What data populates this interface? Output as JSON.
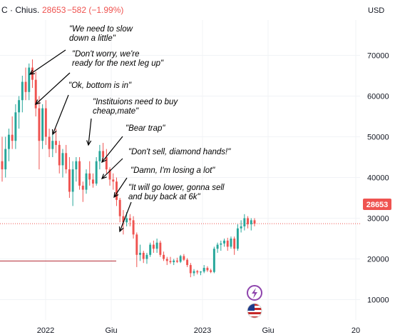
{
  "header": {
    "symbol_text": "C · Chius.",
    "last_price": "28653",
    "change": "−582 (−1.99%)",
    "currency": "USD"
  },
  "price_tag": "28653",
  "colors": {
    "up": "#26a69a",
    "down": "#ef5350",
    "grid": "#f1f3f6",
    "axis_text": "#131722",
    "support_line": "#b22833"
  },
  "icons": [
    "bolt-badge-icon",
    "us-flag-icon"
  ],
  "chart_data": {
    "type": "candlestick",
    "title": "",
    "ylabel": "USD",
    "ylim": [
      5000,
      76000
    ],
    "y_ticks": [
      10000,
      20000,
      30000,
      40000,
      50000,
      60000,
      70000
    ],
    "x_ticks": [
      "2022",
      "Giu",
      "2023",
      "Giu",
      "20"
    ],
    "last_price_line": 28653,
    "support_line": 19500,
    "candles": [
      {
        "o": 44000,
        "h": 50000,
        "l": 39000,
        "c": 42000
      },
      {
        "o": 42000,
        "h": 50000,
        "l": 40000,
        "c": 47000
      },
      {
        "o": 47000,
        "h": 52000,
        "l": 44000,
        "c": 50500
      },
      {
        "o": 50500,
        "h": 55000,
        "l": 47000,
        "c": 49000
      },
      {
        "o": 49000,
        "h": 58000,
        "l": 47000,
        "c": 56000
      },
      {
        "o": 56000,
        "h": 60000,
        "l": 52000,
        "c": 59000
      },
      {
        "o": 59000,
        "h": 65000,
        "l": 56000,
        "c": 63500
      },
      {
        "o": 63500,
        "h": 67000,
        "l": 59000,
        "c": 61000
      },
      {
        "o": 61000,
        "h": 68000,
        "l": 59000,
        "c": 67000
      },
      {
        "o": 67000,
        "h": 69000,
        "l": 62000,
        "c": 64000
      },
      {
        "o": 64000,
        "h": 66000,
        "l": 55000,
        "c": 57000
      },
      {
        "o": 57000,
        "h": 60000,
        "l": 42000,
        "c": 49000
      },
      {
        "o": 49000,
        "h": 58000,
        "l": 47000,
        "c": 57000
      },
      {
        "o": 57000,
        "h": 59000,
        "l": 48000,
        "c": 50000
      },
      {
        "o": 50000,
        "h": 52000,
        "l": 45000,
        "c": 47000
      },
      {
        "o": 47000,
        "h": 51000,
        "l": 45000,
        "c": 49000
      },
      {
        "o": 49000,
        "h": 52000,
        "l": 46000,
        "c": 48000
      },
      {
        "o": 48000,
        "h": 49000,
        "l": 41000,
        "c": 43000
      },
      {
        "o": 43000,
        "h": 47000,
        "l": 40000,
        "c": 46000
      },
      {
        "o": 46000,
        "h": 48000,
        "l": 41000,
        "c": 42000
      },
      {
        "o": 42000,
        "h": 45000,
        "l": 35000,
        "c": 36500
      },
      {
        "o": 36500,
        "h": 44000,
        "l": 33000,
        "c": 42000
      },
      {
        "o": 42000,
        "h": 45000,
        "l": 39000,
        "c": 44000
      },
      {
        "o": 44000,
        "h": 45000,
        "l": 37000,
        "c": 38000
      },
      {
        "o": 38000,
        "h": 39000,
        "l": 34000,
        "c": 37000
      },
      {
        "o": 37000,
        "h": 42000,
        "l": 36000,
        "c": 41000
      },
      {
        "o": 41000,
        "h": 44000,
        "l": 38000,
        "c": 39500
      },
      {
        "o": 39500,
        "h": 41000,
        "l": 37500,
        "c": 38500
      },
      {
        "o": 38500,
        "h": 45000,
        "l": 38000,
        "c": 44000
      },
      {
        "o": 44000,
        "h": 48000,
        "l": 42000,
        "c": 46500
      },
      {
        "o": 46500,
        "h": 48500,
        "l": 44000,
        "c": 45000
      },
      {
        "o": 45000,
        "h": 47000,
        "l": 41000,
        "c": 42000
      },
      {
        "o": 42000,
        "h": 42500,
        "l": 38000,
        "c": 39500
      },
      {
        "o": 39500,
        "h": 41000,
        "l": 37000,
        "c": 39000
      },
      {
        "o": 39000,
        "h": 40000,
        "l": 33000,
        "c": 34500
      },
      {
        "o": 34500,
        "h": 35000,
        "l": 29000,
        "c": 30500
      },
      {
        "o": 30500,
        "h": 32000,
        "l": 26000,
        "c": 29000
      },
      {
        "o": 29000,
        "h": 31500,
        "l": 28000,
        "c": 30000
      },
      {
        "o": 30000,
        "h": 31000,
        "l": 28000,
        "c": 29500
      },
      {
        "o": 29500,
        "h": 30500,
        "l": 25000,
        "c": 26000
      },
      {
        "o": 26000,
        "h": 26500,
        "l": 18000,
        "c": 21000
      },
      {
        "o": 21000,
        "h": 23500,
        "l": 19500,
        "c": 21500
      },
      {
        "o": 21500,
        "h": 22000,
        "l": 19000,
        "c": 20000
      },
      {
        "o": 20000,
        "h": 21500,
        "l": 18800,
        "c": 21000
      },
      {
        "o": 21000,
        "h": 24000,
        "l": 20500,
        "c": 23500
      },
      {
        "o": 23500,
        "h": 24500,
        "l": 21500,
        "c": 22500
      },
      {
        "o": 22500,
        "h": 25000,
        "l": 21500,
        "c": 24000
      },
      {
        "o": 24000,
        "h": 24500,
        "l": 20500,
        "c": 21000
      },
      {
        "o": 21000,
        "h": 21800,
        "l": 19500,
        "c": 20000
      },
      {
        "o": 20000,
        "h": 20500,
        "l": 18500,
        "c": 19500
      },
      {
        "o": 19500,
        "h": 20500,
        "l": 18800,
        "c": 19200
      },
      {
        "o": 19200,
        "h": 20000,
        "l": 18500,
        "c": 19600
      },
      {
        "o": 19600,
        "h": 20300,
        "l": 19000,
        "c": 19300
      },
      {
        "o": 19300,
        "h": 21000,
        "l": 19000,
        "c": 20700
      },
      {
        "o": 20700,
        "h": 21200,
        "l": 19500,
        "c": 19800
      },
      {
        "o": 19800,
        "h": 20200,
        "l": 18000,
        "c": 18500
      },
      {
        "o": 18500,
        "h": 19000,
        "l": 15500,
        "c": 16500
      },
      {
        "o": 16500,
        "h": 17500,
        "l": 15800,
        "c": 17000
      },
      {
        "o": 17000,
        "h": 17300,
        "l": 16200,
        "c": 16700
      },
      {
        "o": 16700,
        "h": 17000,
        "l": 16000,
        "c": 16900
      },
      {
        "o": 16900,
        "h": 18500,
        "l": 16500,
        "c": 17800
      },
      {
        "o": 17800,
        "h": 18200,
        "l": 16800,
        "c": 17200
      },
      {
        "o": 17200,
        "h": 17600,
        "l": 16500,
        "c": 16800
      },
      {
        "o": 16800,
        "h": 23000,
        "l": 16500,
        "c": 22500
      },
      {
        "o": 22500,
        "h": 24000,
        "l": 21500,
        "c": 23500
      },
      {
        "o": 23500,
        "h": 24500,
        "l": 22000,
        "c": 23800
      },
      {
        "o": 23800,
        "h": 25000,
        "l": 23000,
        "c": 24500
      },
      {
        "o": 24500,
        "h": 25200,
        "l": 22000,
        "c": 23000
      },
      {
        "o": 23000,
        "h": 25500,
        "l": 22500,
        "c": 25000
      },
      {
        "o": 25000,
        "h": 25500,
        "l": 21000,
        "c": 22500
      },
      {
        "o": 22500,
        "h": 28500,
        "l": 22000,
        "c": 27500
      },
      {
        "o": 27500,
        "h": 29500,
        "l": 26500,
        "c": 28000
      },
      {
        "o": 28000,
        "h": 31000,
        "l": 27000,
        "c": 30000
      },
      {
        "o": 30000,
        "h": 30500,
        "l": 27500,
        "c": 28500
      },
      {
        "o": 28500,
        "h": 30000,
        "l": 27000,
        "c": 29500
      },
      {
        "o": 29500,
        "h": 30000,
        "l": 28000,
        "c": 28653
      }
    ]
  },
  "annotations": [
    {
      "text": [
        "\"We need to slow",
        "down a little\""
      ]
    },
    {
      "text": [
        "\"Don't worry, we're",
        "ready for the next leg up\""
      ]
    },
    {
      "text": [
        "\"Ok, bottom is in\""
      ]
    },
    {
      "text": [
        "\"Instituions need to buy",
        "cheap,mate\""
      ]
    },
    {
      "text": [
        "\"Bear trap\""
      ]
    },
    {
      "text": [
        "\"Don't sell, diamond hands!\""
      ]
    },
    {
      "text": [
        "\"Damn, I'm losing a lot\""
      ]
    },
    {
      "text": [
        "\"It will go lower, gonna sell",
        "and buy back at 6k\""
      ]
    }
  ]
}
